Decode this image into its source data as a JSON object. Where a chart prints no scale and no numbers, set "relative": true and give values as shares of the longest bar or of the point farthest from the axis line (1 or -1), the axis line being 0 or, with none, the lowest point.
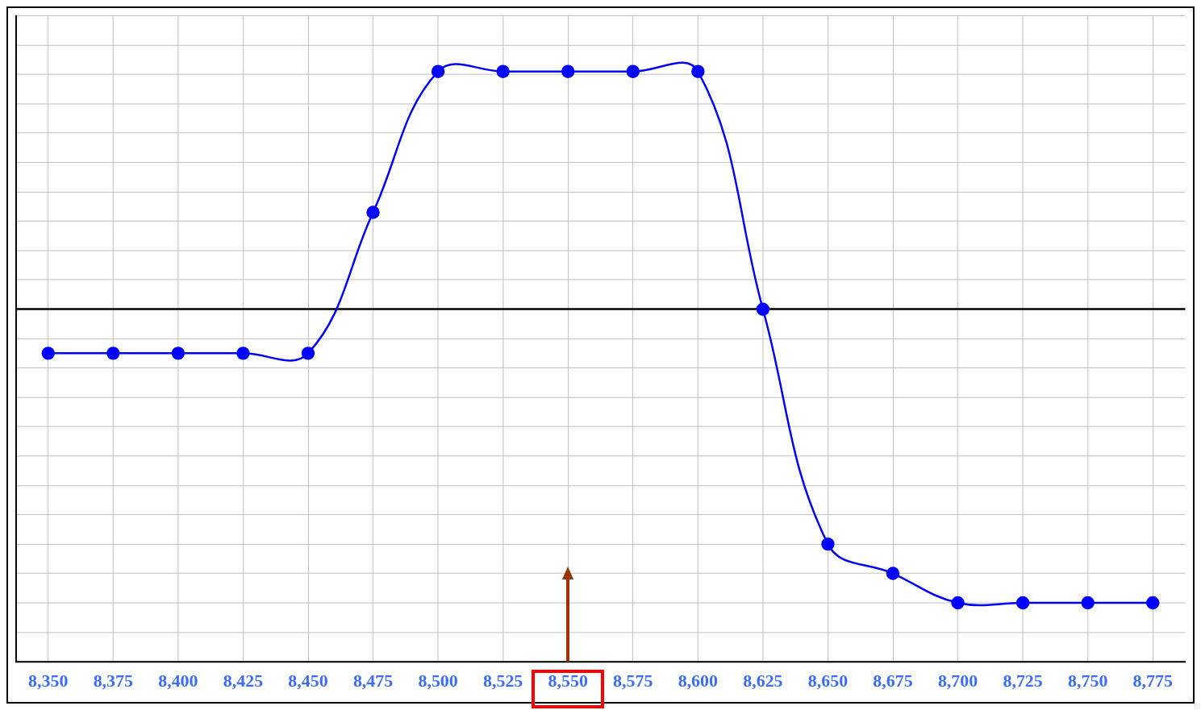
{
  "chart_data": {
    "type": "line",
    "relative": true,
    "categories": [
      "8,350",
      "8,375",
      "8,400",
      "8,425",
      "8,450",
      "8,475",
      "8,500",
      "8,525",
      "8,550",
      "8,575",
      "8,600",
      "8,625",
      "8,650",
      "8,675",
      "8,700",
      "8,725",
      "8,750",
      "8,775"
    ],
    "series": [
      {
        "color": "#0000ff",
        "values": [
          -0.15,
          -0.15,
          -0.15,
          -0.15,
          -0.15,
          0.33,
          0.81,
          0.81,
          0.81,
          0.81,
          0.81,
          0,
          -0.8,
          -0.9,
          -1,
          -1,
          -1,
          -1
        ]
      }
    ],
    "grid": true,
    "legend": false,
    "marker": "circle",
    "line_style": "solid"
  }
}
